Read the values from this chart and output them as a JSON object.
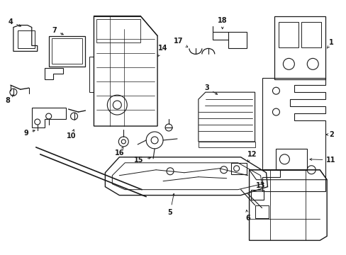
{
  "background_color": "#ffffff",
  "line_color": "#1a1a1a",
  "text_color": "#1a1a1a",
  "fig_width": 4.89,
  "fig_height": 3.6,
  "dpi": 100,
  "label_fontsize": 7.0
}
